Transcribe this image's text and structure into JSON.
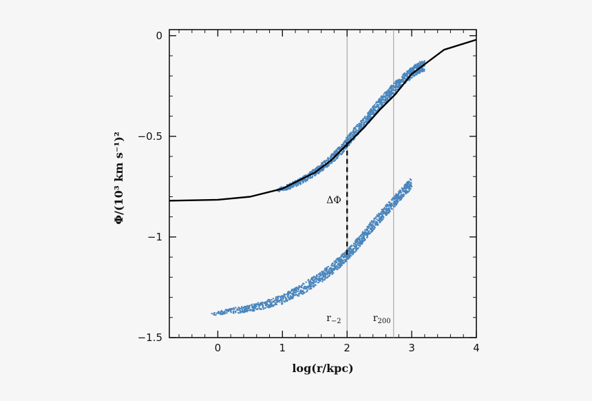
{
  "chart_data": {
    "type": "scatter",
    "xlabel": "log(r/kpc)",
    "ylabel": "Φ/(10³ km s⁻¹)²",
    "xlim": [
      -0.75,
      4.0
    ],
    "ylim": [
      -1.5,
      0.03
    ],
    "x_ticks": [
      "0",
      "1",
      "2",
      "3",
      "4"
    ],
    "y_ticks": [
      "0",
      "−0.5",
      "−1",
      "−1.5"
    ],
    "grid": false,
    "legend": "none",
    "colors": {
      "points": "#4a86bd",
      "model_line": "#000000",
      "reference_lines": "#9a9a9a"
    },
    "reference_lines": [
      {
        "x": 2.0,
        "label": "r",
        "subscript": "−2"
      },
      {
        "x": 2.72,
        "label": "r",
        "subscript": "200"
      }
    ],
    "series": [
      {
        "kind": "scatter",
        "x": [
          -0.1,
          0.4,
          0.7,
          1.0,
          1.3,
          1.6,
          1.8,
          2.0,
          2.2,
          2.4,
          2.6,
          2.8,
          3.0
        ],
        "y": [
          -1.38,
          -1.36,
          -1.34,
          -1.31,
          -1.26,
          -1.2,
          -1.15,
          -1.09,
          -1.02,
          -0.94,
          -0.87,
          -0.8,
          -0.73
        ]
      },
      {
        "kind": "scatter",
        "x": [
          0.9,
          1.1,
          1.3,
          1.5,
          1.7,
          1.9,
          2.1,
          2.3,
          2.5,
          2.7,
          2.9,
          3.1,
          3.2
        ],
        "y": [
          -0.77,
          -0.75,
          -0.72,
          -0.68,
          -0.63,
          -0.57,
          -0.49,
          -0.42,
          -0.34,
          -0.27,
          -0.21,
          -0.16,
          -0.15
        ]
      },
      {
        "kind": "line",
        "x": [
          -0.75,
          0.0,
          0.5,
          1.0,
          1.5,
          1.75,
          2.0,
          2.25,
          2.5,
          2.75,
          3.0,
          3.5,
          4.0
        ],
        "y": [
          -0.82,
          -0.815,
          -0.8,
          -0.76,
          -0.68,
          -0.62,
          -0.54,
          -0.46,
          -0.37,
          -0.29,
          -0.19,
          -0.07,
          -0.02
        ]
      }
    ],
    "annotations": [
      {
        "text": "ΔΦ",
        "x": 2.0,
        "y_top": -0.53,
        "y_bottom": -1.1,
        "style": "dashed"
      }
    ]
  }
}
